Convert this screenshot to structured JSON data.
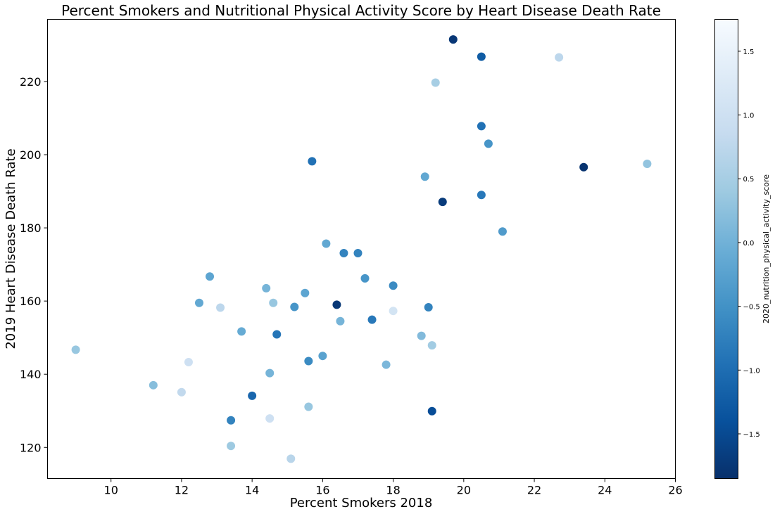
{
  "chart_data": {
    "type": "scatter",
    "title": "Percent Smokers and Nutritional Physical Activity Score by Heart Disease Death Rate",
    "xlabel": "Percent Smokers 2018",
    "ylabel": "2019 Heart Disease Death Rate",
    "xlim": [
      8.2,
      26.0
    ],
    "ylim": [
      111.5,
      237.0
    ],
    "x_ticks": [
      10,
      12,
      14,
      16,
      18,
      20,
      22,
      24,
      26
    ],
    "y_ticks": [
      120,
      140,
      160,
      180,
      200,
      220
    ],
    "grid": false,
    "colorbar": {
      "label": "2020_nutrition_physical_activity_score",
      "colormap": "Blues_r",
      "range": [
        -1.85,
        1.75
      ],
      "ticks": [
        -1.5,
        -1.0,
        -0.5,
        0.0,
        0.5,
        1.0,
        1.5
      ],
      "tick_labels": [
        "−1.5",
        "−1.0",
        "−0.5",
        "0.0",
        "0.5",
        "1.0",
        "1.5"
      ]
    },
    "points": [
      {
        "x": 19.7,
        "y": 231.5,
        "c": -1.75
      },
      {
        "x": 20.5,
        "y": 226.8,
        "c": -1.25
      },
      {
        "x": 22.7,
        "y": 226.6,
        "c": 0.75
      },
      {
        "x": 19.2,
        "y": 219.7,
        "c": 0.5
      },
      {
        "x": 20.5,
        "y": 207.8,
        "c": -0.95
      },
      {
        "x": 20.7,
        "y": 203.0,
        "c": -0.45
      },
      {
        "x": 15.7,
        "y": 198.2,
        "c": -0.95
      },
      {
        "x": 23.4,
        "y": 196.6,
        "c": -1.8
      },
      {
        "x": 25.2,
        "y": 197.5,
        "c": 0.3
      },
      {
        "x": 18.9,
        "y": 194.0,
        "c": -0.15
      },
      {
        "x": 20.5,
        "y": 189.0,
        "c": -0.85
      },
      {
        "x": 19.4,
        "y": 187.1,
        "c": -1.7
      },
      {
        "x": 21.1,
        "y": 179.0,
        "c": -0.35
      },
      {
        "x": 16.1,
        "y": 175.7,
        "c": -0.15
      },
      {
        "x": 16.6,
        "y": 173.1,
        "c": -0.7
      },
      {
        "x": 17.0,
        "y": 173.1,
        "c": -0.7
      },
      {
        "x": 12.8,
        "y": 166.7,
        "c": -0.2
      },
      {
        "x": 17.2,
        "y": 166.2,
        "c": -0.45
      },
      {
        "x": 18.0,
        "y": 164.2,
        "c": -0.6
      },
      {
        "x": 14.4,
        "y": 163.5,
        "c": 0.05
      },
      {
        "x": 15.5,
        "y": 162.2,
        "c": -0.2
      },
      {
        "x": 12.5,
        "y": 159.5,
        "c": -0.15
      },
      {
        "x": 14.6,
        "y": 159.5,
        "c": 0.35
      },
      {
        "x": 16.4,
        "y": 159.0,
        "c": -1.75
      },
      {
        "x": 13.1,
        "y": 158.2,
        "c": 0.75
      },
      {
        "x": 15.2,
        "y": 158.4,
        "c": -0.45
      },
      {
        "x": 19.0,
        "y": 158.3,
        "c": -0.7
      },
      {
        "x": 18.0,
        "y": 157.3,
        "c": 1.1
      },
      {
        "x": 17.4,
        "y": 154.9,
        "c": -0.85
      },
      {
        "x": 16.5,
        "y": 154.5,
        "c": 0.05
      },
      {
        "x": 13.7,
        "y": 151.7,
        "c": -0.1
      },
      {
        "x": 14.7,
        "y": 150.9,
        "c": -0.9
      },
      {
        "x": 18.8,
        "y": 150.5,
        "c": 0.15
      },
      {
        "x": 19.1,
        "y": 147.9,
        "c": 0.45
      },
      {
        "x": 9.0,
        "y": 146.7,
        "c": 0.35
      },
      {
        "x": 16.0,
        "y": 145.0,
        "c": -0.25
      },
      {
        "x": 15.6,
        "y": 143.6,
        "c": -0.6
      },
      {
        "x": 12.2,
        "y": 143.3,
        "c": 1.0
      },
      {
        "x": 17.8,
        "y": 142.6,
        "c": 0.1
      },
      {
        "x": 14.5,
        "y": 140.3,
        "c": 0.05
      },
      {
        "x": 11.2,
        "y": 137.0,
        "c": 0.2
      },
      {
        "x": 12.0,
        "y": 135.1,
        "c": 0.8
      },
      {
        "x": 14.0,
        "y": 134.1,
        "c": -1.1
      },
      {
        "x": 15.6,
        "y": 131.1,
        "c": 0.35
      },
      {
        "x": 19.1,
        "y": 129.9,
        "c": -1.45
      },
      {
        "x": 14.5,
        "y": 127.9,
        "c": 1.0
      },
      {
        "x": 13.4,
        "y": 127.4,
        "c": -0.7
      },
      {
        "x": 13.4,
        "y": 120.4,
        "c": 0.4
      },
      {
        "x": 15.1,
        "y": 116.9,
        "c": 0.7
      }
    ]
  }
}
